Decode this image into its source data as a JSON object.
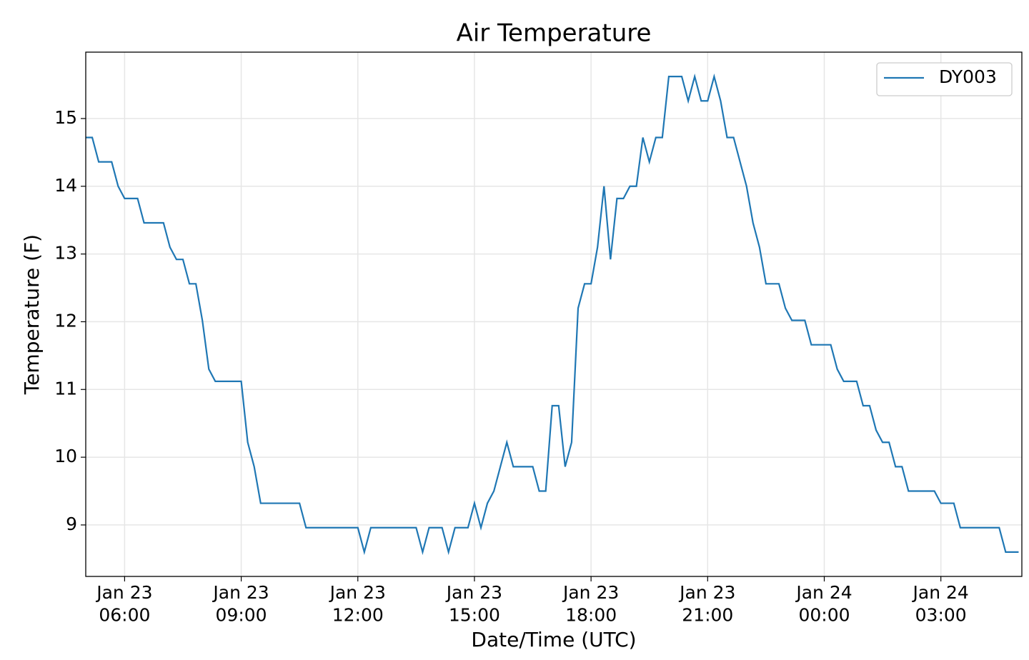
{
  "chart_data": {
    "type": "line",
    "title": "Air Temperature",
    "x_label": "Date/Time (UTC)",
    "y_label": "Temperature (F)",
    "x": [
      "Jan 23 05:00",
      "Jan 23 05:10",
      "Jan 23 05:20",
      "Jan 23 05:30",
      "Jan 23 05:40",
      "Jan 23 05:50",
      "Jan 23 06:00",
      "Jan 23 06:10",
      "Jan 23 06:20",
      "Jan 23 06:30",
      "Jan 23 06:40",
      "Jan 23 06:50",
      "Jan 23 07:00",
      "Jan 23 07:10",
      "Jan 23 07:20",
      "Jan 23 07:30",
      "Jan 23 07:40",
      "Jan 23 07:50",
      "Jan 23 08:00",
      "Jan 23 08:10",
      "Jan 23 08:20",
      "Jan 23 08:30",
      "Jan 23 08:40",
      "Jan 23 08:50",
      "Jan 23 09:00",
      "Jan 23 09:10",
      "Jan 23 09:20",
      "Jan 23 09:30",
      "Jan 23 09:40",
      "Jan 23 09:50",
      "Jan 23 10:00",
      "Jan 23 10:10",
      "Jan 23 10:20",
      "Jan 23 10:30",
      "Jan 23 10:40",
      "Jan 23 10:50",
      "Jan 23 11:00",
      "Jan 23 11:10",
      "Jan 23 11:20",
      "Jan 23 11:30",
      "Jan 23 11:40",
      "Jan 23 11:50",
      "Jan 23 12:00",
      "Jan 23 12:10",
      "Jan 23 12:20",
      "Jan 23 12:30",
      "Jan 23 12:40",
      "Jan 23 12:50",
      "Jan 23 13:00",
      "Jan 23 13:10",
      "Jan 23 13:20",
      "Jan 23 13:30",
      "Jan 23 13:40",
      "Jan 23 13:50",
      "Jan 23 14:00",
      "Jan 23 14:10",
      "Jan 23 14:20",
      "Jan 23 14:30",
      "Jan 23 14:40",
      "Jan 23 14:50",
      "Jan 23 15:00",
      "Jan 23 15:10",
      "Jan 23 15:20",
      "Jan 23 15:30",
      "Jan 23 15:40",
      "Jan 23 15:50",
      "Jan 23 16:00",
      "Jan 23 16:10",
      "Jan 23 16:20",
      "Jan 23 16:30",
      "Jan 23 16:40",
      "Jan 23 16:50",
      "Jan 23 17:00",
      "Jan 23 17:10",
      "Jan 23 17:20",
      "Jan 23 17:30",
      "Jan 23 17:40",
      "Jan 23 17:50",
      "Jan 23 18:00",
      "Jan 23 18:10",
      "Jan 23 18:20",
      "Jan 23 18:30",
      "Jan 23 18:40",
      "Jan 23 18:50",
      "Jan 23 19:00",
      "Jan 23 19:10",
      "Jan 23 19:20",
      "Jan 23 19:30",
      "Jan 23 19:40",
      "Jan 23 19:50",
      "Jan 23 20:00",
      "Jan 23 20:10",
      "Jan 23 20:20",
      "Jan 23 20:30",
      "Jan 23 20:40",
      "Jan 23 20:50",
      "Jan 23 21:00",
      "Jan 23 21:10",
      "Jan 23 21:20",
      "Jan 23 21:30",
      "Jan 23 21:40",
      "Jan 23 21:50",
      "Jan 23 22:00",
      "Jan 23 22:10",
      "Jan 23 22:20",
      "Jan 23 22:30",
      "Jan 23 22:40",
      "Jan 23 22:50",
      "Jan 23 23:00",
      "Jan 23 23:10",
      "Jan 23 23:20",
      "Jan 23 23:30",
      "Jan 23 23:40",
      "Jan 23 23:50",
      "Jan 24 00:00",
      "Jan 24 00:10",
      "Jan 24 00:20",
      "Jan 24 00:30",
      "Jan 24 00:40",
      "Jan 24 00:50",
      "Jan 24 01:00",
      "Jan 24 01:10",
      "Jan 24 01:20",
      "Jan 24 01:30",
      "Jan 24 01:40",
      "Jan 24 01:50",
      "Jan 24 02:00",
      "Jan 24 02:10",
      "Jan 24 02:20",
      "Jan 24 02:30",
      "Jan 24 02:40",
      "Jan 24 02:50",
      "Jan 24 03:00",
      "Jan 24 03:10",
      "Jan 24 03:20",
      "Jan 24 03:30",
      "Jan 24 03:40",
      "Jan 24 03:50",
      "Jan 24 04:00",
      "Jan 24 04:10",
      "Jan 24 04:20",
      "Jan 24 04:30",
      "Jan 24 04:40",
      "Jan 24 04:50",
      "Jan 24 05:00"
    ],
    "series": [
      {
        "name": "DY003",
        "color": "#1f77b4",
        "values": [
          14.72,
          14.72,
          14.36,
          14.36,
          14.36,
          14.0,
          13.82,
          13.82,
          13.82,
          13.46,
          13.46,
          13.46,
          13.46,
          13.1,
          12.92,
          12.92,
          12.56,
          12.56,
          12.02,
          11.3,
          11.12,
          11.12,
          11.12,
          11.12,
          11.12,
          10.22,
          9.86,
          9.32,
          9.32,
          9.32,
          9.32,
          9.32,
          9.32,
          9.32,
          8.96,
          8.96,
          8.96,
          8.96,
          8.96,
          8.96,
          8.96,
          8.96,
          8.96,
          8.6,
          8.96,
          8.96,
          8.96,
          8.96,
          8.96,
          8.96,
          8.96,
          8.96,
          8.6,
          8.96,
          8.96,
          8.96,
          8.6,
          8.96,
          8.96,
          8.96,
          9.32,
          8.96,
          9.32,
          9.5,
          9.86,
          10.22,
          9.86,
          9.86,
          9.86,
          9.86,
          9.5,
          9.5,
          10.76,
          10.76,
          9.86,
          10.22,
          12.2,
          12.56,
          12.56,
          13.1,
          14.0,
          12.92,
          13.82,
          13.82,
          14.0,
          14.0,
          14.72,
          14.36,
          14.72,
          14.72,
          15.62,
          15.62,
          15.62,
          15.26,
          15.62,
          15.26,
          15.26,
          15.62,
          15.26,
          14.72,
          14.72,
          14.36,
          14.0,
          13.46,
          13.1,
          12.56,
          12.56,
          12.56,
          12.2,
          12.02,
          12.02,
          12.02,
          11.66,
          11.66,
          11.66,
          11.66,
          11.3,
          11.12,
          11.12,
          11.12,
          10.76,
          10.76,
          10.4,
          10.22,
          10.22,
          9.86,
          9.86,
          9.5,
          9.5,
          9.5,
          9.5,
          9.5,
          9.32,
          9.32,
          9.32,
          8.96,
          8.96,
          8.96,
          8.96,
          8.96,
          8.96,
          8.96,
          8.6,
          8.6,
          8.6
        ]
      }
    ],
    "xlim": [
      "Jan 23 05:00",
      "Jan 24 05:05"
    ],
    "xticks": [
      {
        "value": "Jan 23 06:00",
        "label": "Jan 23\n06:00"
      },
      {
        "value": "Jan 23 09:00",
        "label": "Jan 23\n09:00"
      },
      {
        "value": "Jan 23 12:00",
        "label": "Jan 23\n12:00"
      },
      {
        "value": "Jan 23 15:00",
        "label": "Jan 23\n15:00"
      },
      {
        "value": "Jan 23 18:00",
        "label": "Jan 23\n18:00"
      },
      {
        "value": "Jan 23 21:00",
        "label": "Jan 23\n21:00"
      },
      {
        "value": "Jan 24 00:00",
        "label": "Jan 24\n00:00"
      },
      {
        "value": "Jan 24 03:00",
        "label": "Jan 24\n03:00"
      }
    ],
    "ylim": [
      8.24,
      15.98
    ],
    "yticks": [
      9,
      10,
      11,
      12,
      13,
      14,
      15
    ],
    "grid": true,
    "legend": "upper right"
  }
}
